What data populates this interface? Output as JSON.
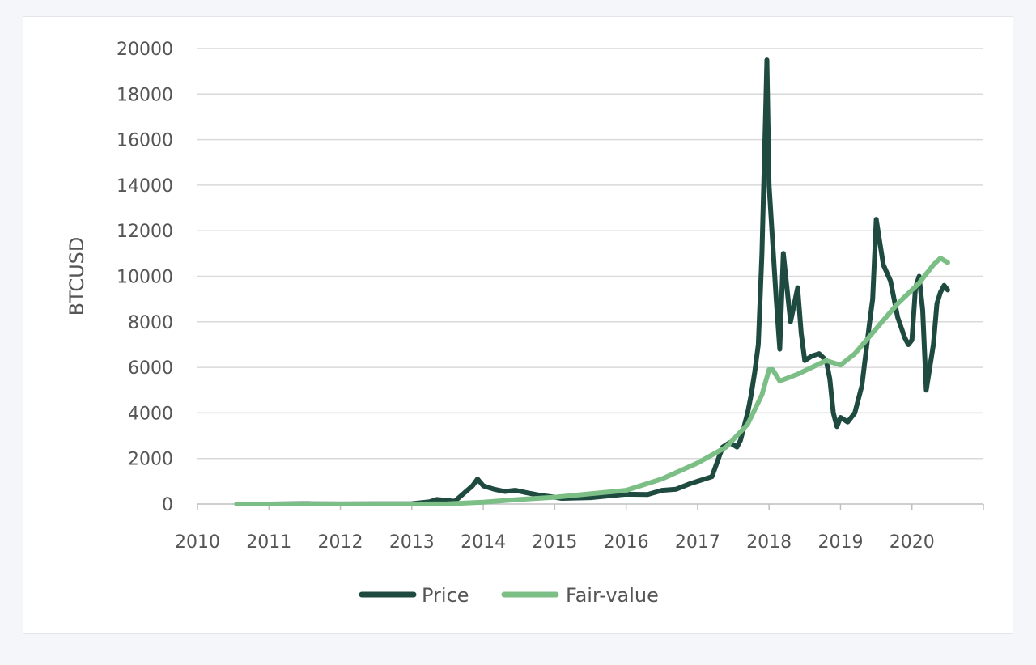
{
  "chart_data": {
    "type": "line",
    "title": "",
    "xlabel": "",
    "ylabel": "BTCUSD",
    "ylim": [
      0,
      20000
    ],
    "xlim": [
      2010,
      2021
    ],
    "yticks": [
      "0",
      "2000",
      "4000",
      "6000",
      "8000",
      "10000",
      "12000",
      "14000",
      "16000",
      "18000",
      "20000"
    ],
    "xticks": [
      "2010",
      "2011",
      "2012",
      "2013",
      "2014",
      "2015",
      "2016",
      "2017",
      "2018",
      "2019",
      "2020"
    ],
    "grid": "horizontal",
    "legend_position": "bottom-center",
    "colors": {
      "price": "#1e4a40",
      "fair_value": "#7cbf86",
      "grid": "#d9d9d9"
    },
    "series": [
      {
        "name": "Price",
        "x": [
          2010.55,
          2011.0,
          2011.45,
          2011.6,
          2012.0,
          2012.5,
          2013.0,
          2013.25,
          2013.35,
          2013.6,
          2013.85,
          2013.92,
          2014.0,
          2014.15,
          2014.3,
          2014.45,
          2014.6,
          2014.8,
          2015.0,
          2015.1,
          2015.5,
          2015.9,
          2016.0,
          2016.3,
          2016.5,
          2016.7,
          2016.9,
          2017.0,
          2017.2,
          2017.35,
          2017.45,
          2017.55,
          2017.6,
          2017.7,
          2017.75,
          2017.8,
          2017.85,
          2017.9,
          2017.95,
          2017.97,
          2018.0,
          2018.05,
          2018.1,
          2018.15,
          2018.2,
          2018.3,
          2018.4,
          2018.45,
          2018.5,
          2018.6,
          2018.7,
          2018.8,
          2018.85,
          2018.9,
          2018.95,
          2019.0,
          2019.1,
          2019.2,
          2019.3,
          2019.4,
          2019.45,
          2019.5,
          2019.55,
          2019.6,
          2019.7,
          2019.8,
          2019.9,
          2019.95,
          2020.0,
          2020.05,
          2020.1,
          2020.15,
          2020.2,
          2020.3,
          2020.35,
          2020.4,
          2020.45,
          2020.5
        ],
        "values": [
          0,
          1,
          15,
          10,
          5,
          7,
          13,
          100,
          200,
          120,
          800,
          1100,
          800,
          650,
          550,
          600,
          500,
          380,
          300,
          250,
          280,
          400,
          430,
          420,
          600,
          650,
          900,
          1000,
          1200,
          2500,
          2700,
          2500,
          2800,
          4000,
          4800,
          5800,
          7000,
          11000,
          17000,
          19500,
          14000,
          11500,
          9000,
          6800,
          11000,
          8000,
          9500,
          7500,
          6300,
          6500,
          6600,
          6300,
          5500,
          4000,
          3400,
          3800,
          3600,
          4000,
          5200,
          7800,
          9000,
          12500,
          11500,
          10500,
          9800,
          8200,
          7300,
          7000,
          7200,
          9500,
          10000,
          8500,
          5000,
          7000,
          8800,
          9300,
          9600,
          9400
        ]
      },
      {
        "name": "Fair-value",
        "x": [
          2010.55,
          2012.0,
          2013.0,
          2013.5,
          2014.0,
          2014.5,
          2015.0,
          2015.5,
          2016.0,
          2016.5,
          2017.0,
          2017.4,
          2017.7,
          2017.9,
          2018.0,
          2018.05,
          2018.15,
          2018.4,
          2018.6,
          2018.8,
          2019.0,
          2019.2,
          2019.5,
          2019.8,
          2020.1,
          2020.3,
          2020.4,
          2020.5
        ],
        "values": [
          0,
          0,
          0,
          10,
          80,
          200,
          300,
          450,
          600,
          1100,
          1800,
          2500,
          3500,
          4800,
          5900,
          5900,
          5400,
          5700,
          6000,
          6300,
          6100,
          6600,
          7700,
          8800,
          9700,
          10500,
          10800,
          10600
        ]
      }
    ]
  }
}
